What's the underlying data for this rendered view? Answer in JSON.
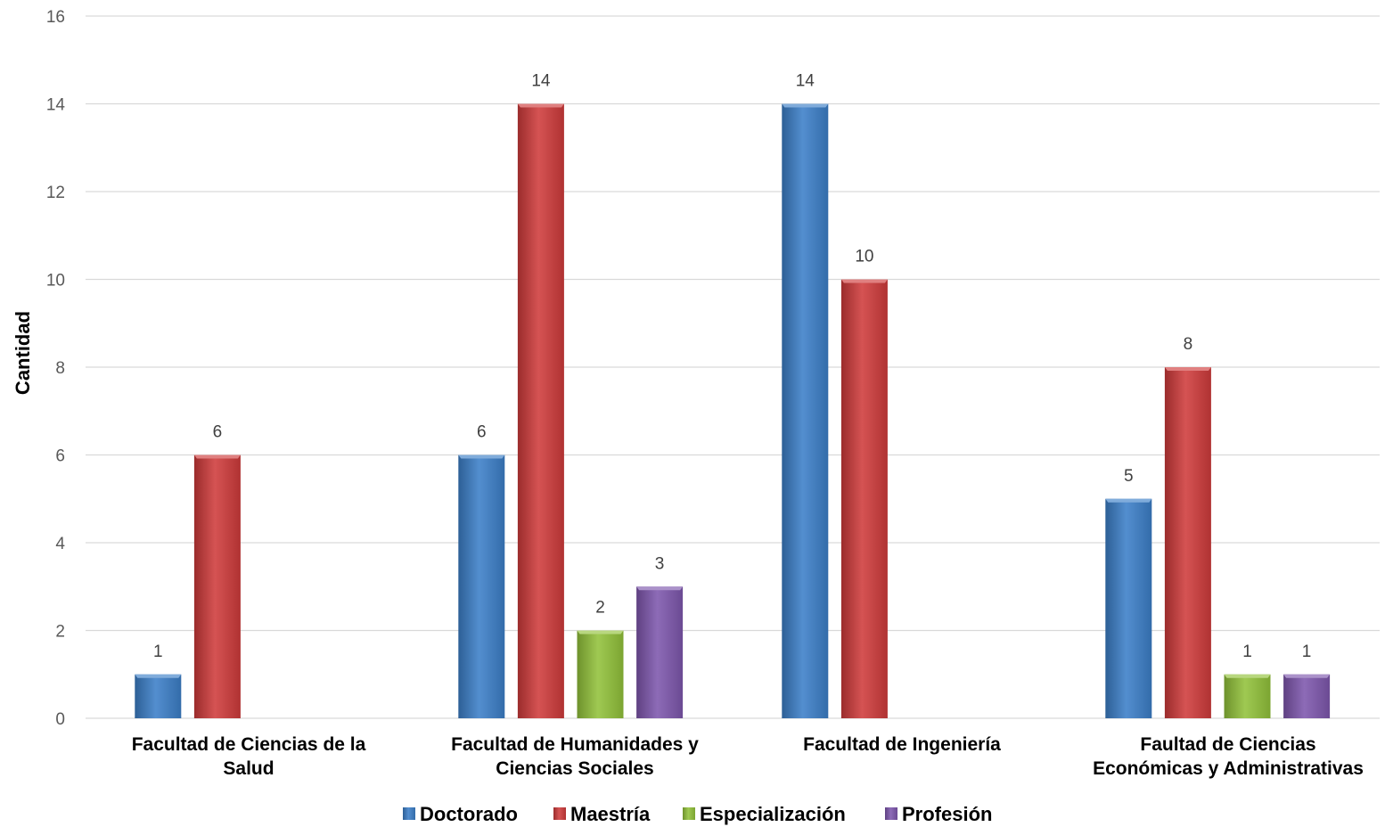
{
  "chart_data": {
    "type": "bar",
    "title": "",
    "xlabel": "",
    "ylabel": "Cantidad",
    "ylim": [
      0,
      16
    ],
    "yticks": [
      0,
      2,
      4,
      6,
      8,
      10,
      12,
      14,
      16
    ],
    "grid": true,
    "legend_position": "bottom",
    "categories": [
      [
        "Facultad de Ciencias de la",
        "Salud"
      ],
      [
        "Facultad de Humanidades y",
        "Ciencias Sociales"
      ],
      [
        "Facultad de Ingeniería"
      ],
      [
        "Faultad de Ciencias",
        "Económicas y Administrativas"
      ]
    ],
    "series": [
      {
        "name": "Doctorado",
        "color": "#3c7fc8",
        "values": [
          1,
          6,
          14,
          5
        ]
      },
      {
        "name": "Maestría",
        "color": "#cf3b3b",
        "values": [
          6,
          14,
          10,
          8
        ]
      },
      {
        "name": "Especialización",
        "color": "#92c23a",
        "values": [
          null,
          2,
          null,
          1
        ]
      },
      {
        "name": "Profesión",
        "color": "#7e57ad",
        "values": [
          null,
          3,
          null,
          1
        ]
      }
    ]
  }
}
